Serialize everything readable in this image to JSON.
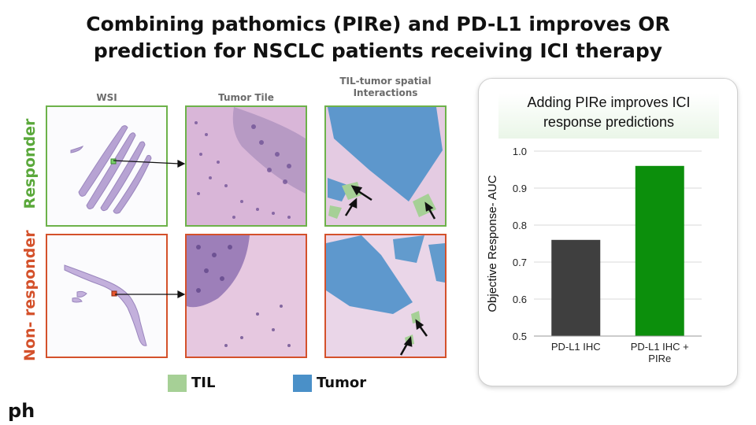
{
  "title_line1": "Combining pathomics (PIRe) and PD-L1 improves OR",
  "title_line2": "prediction for NSCLC patients receiving ICI therapy",
  "columns": [
    "WSI",
    "Tumor Tile",
    "TIL-tumor spatial Interactions"
  ],
  "rows": [
    {
      "label": "Responder",
      "color": "#5aa83a"
    },
    {
      "label": "Non- responder",
      "color": "#d4512b"
    }
  ],
  "legend": [
    {
      "label": "TIL",
      "color": "#a6d096"
    },
    {
      "label": "Tumor",
      "color": "#4a90c8"
    }
  ],
  "logo": "ph",
  "chart_data": {
    "type": "bar",
    "title": "Adding PIRe improves ICI response predictions",
    "categories": [
      "PD-L1 IHC",
      "PD-L1 IHC + PIRe"
    ],
    "values": [
      0.76,
      0.96
    ],
    "colors": [
      "#3f3f3f",
      "#0c8f0c"
    ],
    "ylabel": "Objective Response- AUC",
    "xlabel": "",
    "ylim": [
      0.5,
      1.0
    ],
    "yticks": [
      0.5,
      0.6,
      0.7,
      0.8,
      0.9,
      1.0
    ],
    "grid": true
  }
}
